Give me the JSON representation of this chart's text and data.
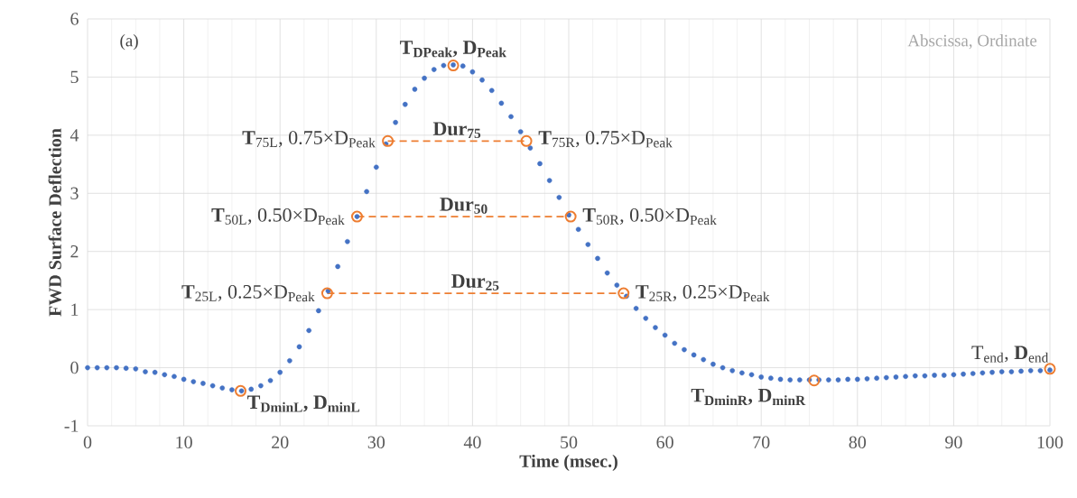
{
  "chart_data": {
    "type": "scatter",
    "xlabel": "Time (msec.)",
    "ylabel": "FWD Surface Deflection",
    "xlim": [
      0,
      100
    ],
    "xticks": [
      0,
      10,
      20,
      30,
      40,
      50,
      60,
      70,
      80,
      90,
      100
    ],
    "ylim": [
      -1,
      6
    ],
    "yticks": [
      -1,
      0,
      1,
      2,
      3,
      4,
      5,
      6
    ],
    "grid": true,
    "series": [
      {
        "marker": "circle",
        "color": "#4472c4",
        "x": [
          0,
          1,
          2,
          3,
          4,
          5,
          6,
          7,
          8,
          9,
          10,
          11,
          12,
          13,
          14,
          15,
          16,
          17,
          18,
          19,
          20,
          21,
          22,
          23,
          24,
          25,
          26,
          27,
          28,
          29,
          30,
          31,
          32,
          33,
          34,
          35,
          36,
          37,
          38,
          39,
          40,
          41,
          42,
          43,
          44,
          45,
          46,
          47,
          48,
          49,
          50,
          51,
          52,
          53,
          54,
          55,
          56,
          57,
          58,
          59,
          60,
          61,
          62,
          63,
          64,
          65,
          66,
          67,
          68,
          69,
          70,
          71,
          72,
          73,
          74,
          75,
          76,
          77,
          78,
          79,
          80,
          81,
          82,
          83,
          84,
          85,
          86,
          87,
          88,
          89,
          90,
          91,
          92,
          93,
          94,
          95,
          96,
          97,
          98,
          99,
          100
        ],
        "values": [
          0,
          0,
          0,
          0,
          -0.01,
          -0.02,
          -0.07,
          -0.08,
          -0.12,
          -0.15,
          -0.2,
          -0.24,
          -0.27,
          -0.31,
          -0.35,
          -0.38,
          -0.4,
          -0.37,
          -0.31,
          -0.22,
          -0.08,
          0.12,
          0.36,
          0.64,
          0.98,
          1.32,
          1.74,
          2.17,
          2.6,
          3.03,
          3.45,
          3.85,
          4.22,
          4.53,
          4.79,
          4.98,
          5.13,
          5.2,
          5.21,
          5.19,
          5.09,
          4.95,
          4.77,
          4.55,
          4.32,
          4.06,
          3.78,
          3.51,
          3.22,
          2.93,
          2.63,
          2.38,
          2.12,
          1.88,
          1.63,
          1.42,
          1.23,
          1.02,
          0.85,
          0.69,
          0.56,
          0.42,
          0.31,
          0.22,
          0.14,
          0.06,
          0,
          -0.05,
          -0.09,
          -0.12,
          -0.16,
          -0.18,
          -0.2,
          -0.21,
          -0.21,
          -0.21,
          -0.21,
          -0.21,
          -0.21,
          -0.2,
          -0.2,
          -0.19,
          -0.18,
          -0.17,
          -0.16,
          -0.15,
          -0.14,
          -0.14,
          -0.13,
          -0.13,
          -0.12,
          -0.11,
          -0.1,
          -0.09,
          -0.08,
          -0.07,
          -0.07,
          -0.06,
          -0.05,
          -0.05,
          -0.04
        ]
      },
      {
        "marker": "circle",
        "color": "#ed7d31",
        "x": [
          15.9,
          24.9,
          28,
          31.2,
          38,
          45.6,
          50.2,
          55.7,
          75.5,
          100
        ],
        "values": [
          -0.4,
          1.28,
          2.6,
          3.9,
          5.2,
          3.9,
          2.6,
          1.28,
          -0.22,
          -0.02
        ]
      },
      {
        "type": "line",
        "marker": "none",
        "line_style": "dashed",
        "color": "#ed7d31",
        "x": [
          31.2,
          45.6
        ],
        "values": [
          3.9,
          3.9
        ]
      },
      {
        "type": "line",
        "marker": "none",
        "line_style": "dashed",
        "color": "#ed7d31",
        "x": [
          28,
          50.2
        ],
        "values": [
          2.6,
          2.6
        ]
      },
      {
        "type": "line",
        "marker": "none",
        "line_style": "dashed",
        "color": "#ed7d31",
        "x": [
          24.9,
          55.7
        ],
        "values": [
          1.28,
          1.28
        ]
      }
    ],
    "annotations": [
      "(a)",
      "Abscissa, Ordinate",
      {
        "text": "T$_{DPeak}$, D$_{Peak}$",
        "x": 38,
        "y": 5.2
      },
      {
        "text": "**T**$_{75L}$, 0.75×D$_{Peak}$",
        "x": 31.2,
        "y": 3.9
      },
      {
        "text": "**T**$_{75R}$, 0.75×D$_{Peak}$",
        "x": 45.6,
        "y": 3.9
      },
      {
        "text": "**T**$_{50L}$, 0.50×D$_{Peak}$",
        "x": 28,
        "y": 2.6
      },
      {
        "text": "**T**$_{50R}$, 0.50×D$_{Peak}$",
        "x": 50.2,
        "y": 2.6
      },
      {
        "text": "**T**$_{25L}$, 0.25×D$_{Peak}$",
        "x": 24.9,
        "y": 1.28
      },
      {
        "text": "**T**$_{25R}$, 0.25×D$_{Peak}$",
        "x": 55.7,
        "y": 1.28
      },
      {
        "text": "T$_{DminL}$, D$_{minL}$",
        "x": 15.9,
        "y": -0.4
      },
      {
        "text": "T$_{DminR}$, D$_{minR}$",
        "x": 75.5,
        "y": -0.22
      },
      {
        "text": "T$_{end}$, **D**$_{end}$",
        "x": 100,
        "y": -0.02
      },
      {
        "text": "Dur$_{75}$",
        "x": 38.4,
        "y": 3.9
      },
      {
        "text": "Dur$_{50}$",
        "x": 39.1,
        "y": 2.6
      },
      {
        "text": "Dur$_{25}$",
        "x": 40.3,
        "y": 1.28
      }
    ]
  }
}
